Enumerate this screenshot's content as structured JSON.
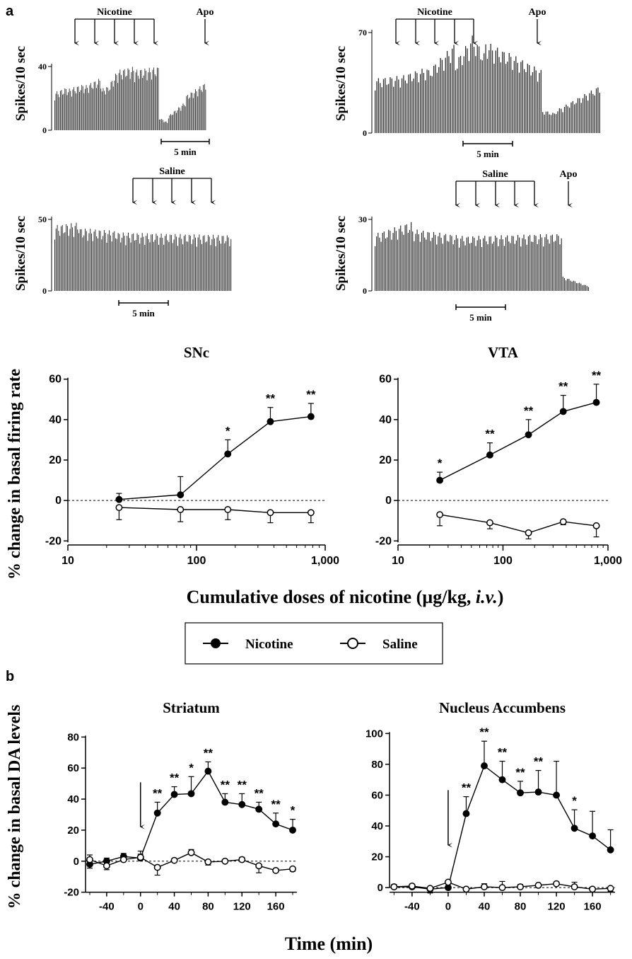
{
  "panel_labels": {
    "a": "a",
    "b": "b"
  },
  "legend": {
    "items": [
      {
        "label": "Nicotine",
        "marker": "filled-circle"
      },
      {
        "label": "Saline",
        "marker": "open-circle"
      }
    ]
  },
  "colors": {
    "ink": "#000000",
    "trace": "#2b2b2b",
    "paper": "#ffffff"
  },
  "chart_data": [
    {
      "id": "trace-nicotine-snc",
      "type": "bar",
      "description_type": "firing-rate-histogram",
      "ylabel": "Spikes/10 sec",
      "yticks": [
        0,
        40
      ],
      "ylim": [
        0,
        45
      ],
      "arrow_group_label": "Nicotine",
      "arrow_count": 5,
      "extra_arrow_label": "Apo",
      "scalebar_label": "5 min",
      "bin_count": 135,
      "segments": [
        {
          "bins": 12,
          "from": 24,
          "to": 27
        },
        {
          "bins": 15,
          "from": 26,
          "to": 29
        },
        {
          "bins": 15,
          "from": 28,
          "to": 33
        },
        {
          "bins": 5,
          "from": 26,
          "to": 28
        },
        {
          "bins": 10,
          "from": 27,
          "to": 38
        },
        {
          "bins": 14,
          "from": 38,
          "to": 40
        },
        {
          "bins": 22,
          "from": 38,
          "to": 40
        },
        {
          "bins": 8,
          "from": 8,
          "to": 5
        },
        {
          "bins": 16,
          "from": 9,
          "to": 18
        },
        {
          "bins": 18,
          "from": 22,
          "to": 30
        }
      ]
    },
    {
      "id": "trace-nicotine-vta",
      "type": "bar",
      "description_type": "firing-rate-histogram",
      "ylabel": "Spikes/10 sec",
      "yticks": [
        0,
        70
      ],
      "ylim": [
        0,
        75
      ],
      "arrow_group_label": "Nicotine",
      "arrow_count": 5,
      "extra_arrow_label": "Apo",
      "scalebar_label": "5 min",
      "bin_count": 135,
      "segments": [
        {
          "bins": 16,
          "from": 38,
          "to": 40
        },
        {
          "bins": 16,
          "from": 40,
          "to": 46
        },
        {
          "bins": 16,
          "from": 44,
          "to": 62
        },
        {
          "bins": 10,
          "from": 50,
          "to": 66
        },
        {
          "bins": 8,
          "from": 68,
          "to": 56
        },
        {
          "bins": 14,
          "from": 64,
          "to": 56
        },
        {
          "bins": 20,
          "from": 56,
          "to": 44
        },
        {
          "bins": 8,
          "from": 16,
          "to": 14
        },
        {
          "bins": 27,
          "from": 16,
          "to": 33
        }
      ]
    },
    {
      "id": "trace-saline-snc",
      "type": "bar",
      "description_type": "firing-rate-histogram",
      "ylabel": "Spikes/10 sec",
      "yticks": [
        0,
        50
      ],
      "ylim": [
        0,
        55
      ],
      "arrow_group_label": "Saline",
      "arrow_count": 5,
      "scalebar_label": "5 min",
      "bin_count": 140,
      "segments": [
        {
          "bins": 20,
          "from": 46,
          "to": 48
        },
        {
          "bins": 30,
          "from": 44,
          "to": 42
        },
        {
          "bins": 40,
          "from": 41,
          "to": 40
        },
        {
          "bins": 50,
          "from": 40,
          "to": 39
        }
      ]
    },
    {
      "id": "trace-saline-vta",
      "type": "bar",
      "description_type": "firing-rate-histogram",
      "ylabel": "Spikes/10 sec",
      "yticks": [
        0,
        30
      ],
      "ylim": [
        0,
        33
      ],
      "arrow_group_label": "Saline",
      "arrow_count": 5,
      "extra_arrow_label": "Apo",
      "scalebar_label": "5 min",
      "bin_count": 143,
      "segments": [
        {
          "bins": 25,
          "from": 24,
          "to": 29
        },
        {
          "bins": 35,
          "from": 26,
          "to": 23
        },
        {
          "bins": 65,
          "from": 23,
          "to": 24
        },
        {
          "bins": 18,
          "from": 6,
          "to": 2
        }
      ]
    },
    {
      "id": "snc-dose-response",
      "type": "line",
      "title": "SNc",
      "xscale": "log",
      "xticks": [
        "10",
        "100",
        "1,000"
      ],
      "xlim": [
        10,
        1000
      ],
      "yticks": [
        -20,
        0,
        20,
        40,
        60
      ],
      "ylim": [
        -22,
        62
      ],
      "zero_line": "dashed",
      "x": [
        25,
        75,
        175,
        375,
        775
      ],
      "series": [
        {
          "name": "Nicotine",
          "marker": "filled-circle",
          "values": [
            0.5,
            2.8,
            23,
            39,
            41.5
          ],
          "errors": [
            3,
            9,
            7,
            7,
            6.5
          ],
          "annotations": [
            "",
            "",
            "*",
            "**",
            "**"
          ]
        },
        {
          "name": "Saline",
          "marker": "open-circle",
          "values": [
            -3.5,
            -4.5,
            -4.5,
            -6,
            -6
          ],
          "errors": [
            6,
            6,
            5,
            5,
            5
          ],
          "annotations": [
            "",
            "",
            "",
            "",
            ""
          ]
        }
      ]
    },
    {
      "id": "vta-dose-response",
      "type": "line",
      "title": "VTA",
      "xscale": "log",
      "xticks": [
        "10",
        "100",
        "1,000"
      ],
      "xlim": [
        10,
        1000
      ],
      "yticks": [
        -20,
        0,
        20,
        40,
        60
      ],
      "ylim": [
        -22,
        62
      ],
      "zero_line": "dashed",
      "x": [
        25,
        75,
        175,
        375,
        775
      ],
      "series": [
        {
          "name": "Nicotine",
          "marker": "filled-circle",
          "values": [
            10,
            22.5,
            32.5,
            44,
            48.5
          ],
          "errors": [
            4,
            6,
            7.5,
            8,
            9
          ],
          "annotations": [
            "*",
            "**",
            "**",
            "**",
            "**"
          ]
        },
        {
          "name": "Saline",
          "marker": "open-circle",
          "values": [
            -7,
            -11,
            -16,
            -10.5,
            -12.5
          ],
          "errors": [
            5.5,
            3,
            3,
            1.5,
            5.5
          ],
          "annotations": [
            "",
            "",
            "",
            "",
            ""
          ]
        }
      ]
    },
    {
      "id": "striatum-time-course",
      "type": "line",
      "title": "Striatum",
      "xticks": [
        -40,
        0,
        40,
        80,
        120,
        160
      ],
      "xlim": [
        -65,
        185
      ],
      "yticks": [
        -20,
        0,
        20,
        40,
        60,
        80
      ],
      "ylim": [
        -22,
        82
      ],
      "zero_line": "dashed",
      "injection_arrow_x": 0,
      "x": [
        -60,
        -40,
        -20,
        0,
        20,
        40,
        60,
        80,
        100,
        120,
        140,
        160,
        180
      ],
      "series": [
        {
          "name": "Nicotine",
          "marker": "filled-circle",
          "values": [
            -2,
            0,
            3,
            2,
            31,
            43,
            43.5,
            58,
            38,
            36.5,
            33.5,
            24,
            20
          ],
          "errors": [
            2.5,
            2,
            2,
            4.5,
            7,
            5,
            11,
            6,
            5.5,
            7,
            4.5,
            7,
            7
          ],
          "annotations": [
            "",
            "",
            "",
            "",
            "**",
            "**",
            "*",
            "**",
            "**",
            "**",
            "**",
            "**",
            "*"
          ]
        },
        {
          "name": "Saline",
          "marker": "open-circle",
          "values": [
            1,
            -3,
            1,
            2.5,
            -4,
            0.5,
            5.5,
            -0.5,
            0,
            1,
            -3,
            -6,
            -5
          ],
          "errors": [
            3,
            2.5,
            2.5,
            2,
            5,
            1,
            2,
            2,
            1,
            1.5,
            4.5,
            1,
            1.5
          ],
          "annotations": [
            "",
            "",
            "",
            "",
            "",
            "",
            "",
            "",
            "",
            "",
            "",
            "",
            ""
          ]
        }
      ]
    },
    {
      "id": "accumbens-time-course",
      "type": "line",
      "title": "Nucleus Accumbens",
      "xticks": [
        -40,
        0,
        40,
        80,
        120,
        160
      ],
      "xlim": [
        -65,
        185
      ],
      "yticks": [
        0,
        20,
        40,
        60,
        80,
        100
      ],
      "ylim": [
        -5,
        102
      ],
      "zero_line": "dashed",
      "injection_arrow_x": 0,
      "x": [
        -60,
        -40,
        -20,
        0,
        20,
        40,
        60,
        80,
        100,
        120,
        140,
        160,
        180
      ],
      "series": [
        {
          "name": "Nicotine",
          "marker": "filled-circle",
          "values": [
            0.5,
            0.5,
            -1,
            0,
            48,
            79,
            70,
            61.5,
            62,
            60,
            38.5,
            33.5,
            24.5
          ],
          "errors": [
            1.5,
            1.5,
            2.5,
            1,
            11,
            16,
            12,
            7.5,
            14,
            22,
            12,
            16,
            13
          ],
          "annotations": [
            "",
            "",
            "",
            "",
            "**",
            "**",
            "**",
            "**",
            "**",
            "",
            "*",
            "",
            ""
          ]
        },
        {
          "name": "Saline",
          "marker": "open-circle",
          "values": [
            0.5,
            1,
            -0.5,
            3.5,
            -1,
            0.5,
            0,
            0.5,
            1.5,
            2.5,
            0.5,
            -1,
            -0.5
          ],
          "errors": [
            1,
            1,
            1,
            1,
            1,
            2,
            4,
            1.5,
            1,
            1,
            3,
            1,
            2
          ],
          "annotations": [
            "",
            "",
            "",
            "",
            "",
            "",
            "",
            "",
            "",
            "",
            "",
            "",
            ""
          ]
        }
      ]
    }
  ],
  "shared_labels": {
    "dose_ylabel": "% change in basal firing rate",
    "dose_xlabel_prefix": "Cumulative doses of nicotine (",
    "dose_xlabel_unit": "µg/kg, ",
    "dose_xlabel_route": "i.v.",
    "dose_xlabel_suffix": ")",
    "time_ylabel": "% change in basal DA levels",
    "time_xlabel": "Time (min)"
  }
}
